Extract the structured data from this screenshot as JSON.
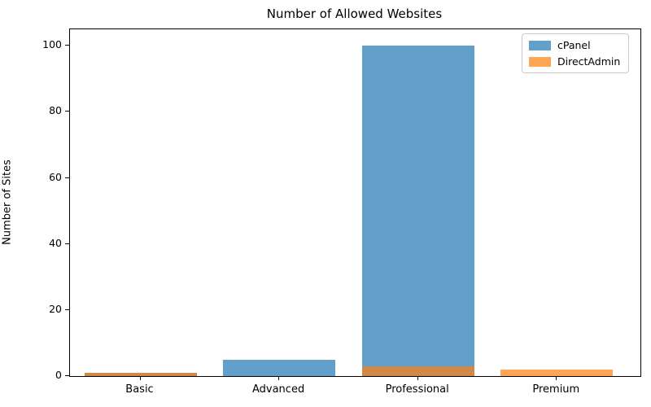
{
  "figure": {
    "background": "#ffffff"
  },
  "chart_data": {
    "type": "bar",
    "title": "Number of Allowed Websites",
    "xlabel": "",
    "ylabel": "Number of Sites",
    "categories": [
      "Basic",
      "Advanced",
      "Professional",
      "Premium"
    ],
    "series": [
      {
        "name": "cPanel",
        "color": "#1f77b4",
        "alpha": 0.7,
        "values": [
          1,
          5,
          100,
          0
        ]
      },
      {
        "name": "DirectAdmin",
        "color": "#ff7f0e",
        "alpha": 0.7,
        "values": [
          1,
          0,
          3,
          2
        ]
      }
    ],
    "bar_mode": "overlay",
    "ylim": [
      0,
      105
    ],
    "yticks": [
      0,
      20,
      40,
      60,
      80,
      100
    ],
    "grid": false,
    "legend": {
      "position": "upper right",
      "entries": [
        "cPanel",
        "DirectAdmin"
      ]
    }
  }
}
